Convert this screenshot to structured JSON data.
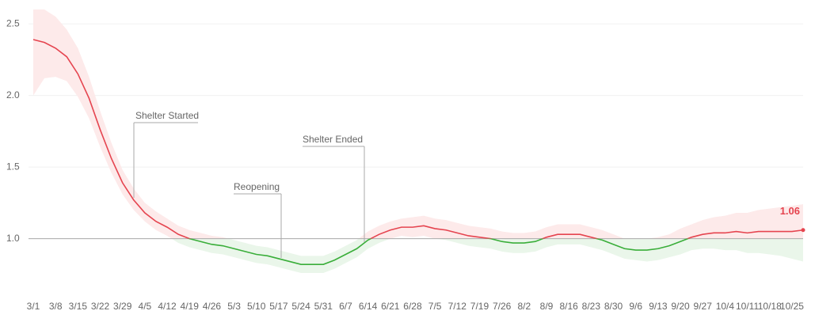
{
  "chart_data": {
    "type": "line",
    "categories": [
      "3/1",
      null,
      "3/8",
      null,
      "3/15",
      null,
      "3/22",
      null,
      "3/29",
      null,
      "4/5",
      null,
      "4/12",
      null,
      "4/19",
      null,
      "4/26",
      null,
      "5/3",
      null,
      "5/10",
      null,
      "5/17",
      null,
      "5/24",
      null,
      "5/31",
      null,
      "6/7",
      null,
      "6/14",
      null,
      "6/21",
      null,
      "6/28",
      null,
      "7/5",
      null,
      "7/12",
      null,
      "7/19",
      null,
      "7/26",
      null,
      "8/2",
      null,
      "8/9",
      null,
      "8/16",
      null,
      "8/23",
      null,
      "8/30",
      null,
      "9/6",
      null,
      "9/13",
      null,
      "9/20",
      null,
      "9/27",
      null,
      "10/4",
      null,
      "10/11",
      null,
      "10/18",
      null,
      "10/25",
      null
    ],
    "values": [
      2.39,
      2.37,
      2.33,
      2.27,
      2.15,
      1.98,
      1.76,
      1.56,
      1.39,
      1.27,
      1.18,
      1.12,
      1.08,
      1.03,
      1.0,
      0.98,
      0.96,
      0.95,
      0.93,
      0.91,
      0.89,
      0.88,
      0.86,
      0.84,
      0.82,
      0.82,
      0.82,
      0.85,
      0.89,
      0.93,
      0.99,
      1.03,
      1.06,
      1.08,
      1.08,
      1.09,
      1.07,
      1.06,
      1.04,
      1.02,
      1.01,
      1.0,
      0.98,
      0.97,
      0.97,
      0.98,
      1.01,
      1.03,
      1.03,
      1.03,
      1.01,
      0.99,
      0.96,
      0.93,
      0.92,
      0.92,
      0.93,
      0.95,
      0.98,
      1.01,
      1.03,
      1.04,
      1.04,
      1.05,
      1.04,
      1.05,
      1.05,
      1.05,
      1.05,
      1.06
    ],
    "band": {
      "upper": [
        2.6,
        2.6,
        2.55,
        2.46,
        2.33,
        2.13,
        1.89,
        1.67,
        1.48,
        1.35,
        1.25,
        1.19,
        1.14,
        1.09,
        1.06,
        1.04,
        1.02,
        1.01,
        0.99,
        0.97,
        0.95,
        0.94,
        0.92,
        0.9,
        0.88,
        0.88,
        0.88,
        0.91,
        0.95,
        0.99,
        1.05,
        1.09,
        1.12,
        1.14,
        1.15,
        1.16,
        1.14,
        1.13,
        1.11,
        1.09,
        1.08,
        1.07,
        1.05,
        1.04,
        1.04,
        1.05,
        1.08,
        1.1,
        1.1,
        1.1,
        1.08,
        1.06,
        1.03,
        1.0,
        1.0,
        1.0,
        1.01,
        1.03,
        1.07,
        1.1,
        1.13,
        1.15,
        1.16,
        1.18,
        1.18,
        1.2,
        1.21,
        1.22,
        1.23,
        1.24
      ],
      "lower": [
        2.0,
        2.12,
        2.13,
        2.1,
        1.99,
        1.84,
        1.64,
        1.46,
        1.31,
        1.2,
        1.12,
        1.06,
        1.02,
        0.97,
        0.94,
        0.92,
        0.9,
        0.89,
        0.87,
        0.85,
        0.83,
        0.82,
        0.8,
        0.78,
        0.76,
        0.76,
        0.76,
        0.79,
        0.83,
        0.87,
        0.93,
        0.97,
        1.0,
        1.02,
        1.01,
        1.02,
        1.0,
        0.99,
        0.97,
        0.95,
        0.94,
        0.93,
        0.91,
        0.9,
        0.9,
        0.91,
        0.94,
        0.96,
        0.96,
        0.96,
        0.94,
        0.92,
        0.89,
        0.86,
        0.85,
        0.84,
        0.85,
        0.87,
        0.89,
        0.92,
        0.93,
        0.93,
        0.92,
        0.92,
        0.9,
        0.9,
        0.89,
        0.88,
        0.86,
        0.84
      ]
    },
    "last_value_label": "1.06",
    "reference_line": 1,
    "above_color": "#e5444f",
    "below_color": "#3aae3a",
    "above_band_color": "#fdeaea",
    "below_band_color": "#eaf6ea",
    "ylim": [
      0.6,
      2.6
    ],
    "yticks": [
      {
        "value": 1,
        "label": "1.0"
      },
      {
        "value": 1.5,
        "label": "1.5"
      },
      {
        "value": 2,
        "label": "2.0"
      },
      {
        "value": 2.5,
        "label": "2.5"
      }
    ],
    "grid": true,
    "annotations": [
      "Shelter Started",
      "Reopening",
      "Shelter Ended"
    ]
  }
}
